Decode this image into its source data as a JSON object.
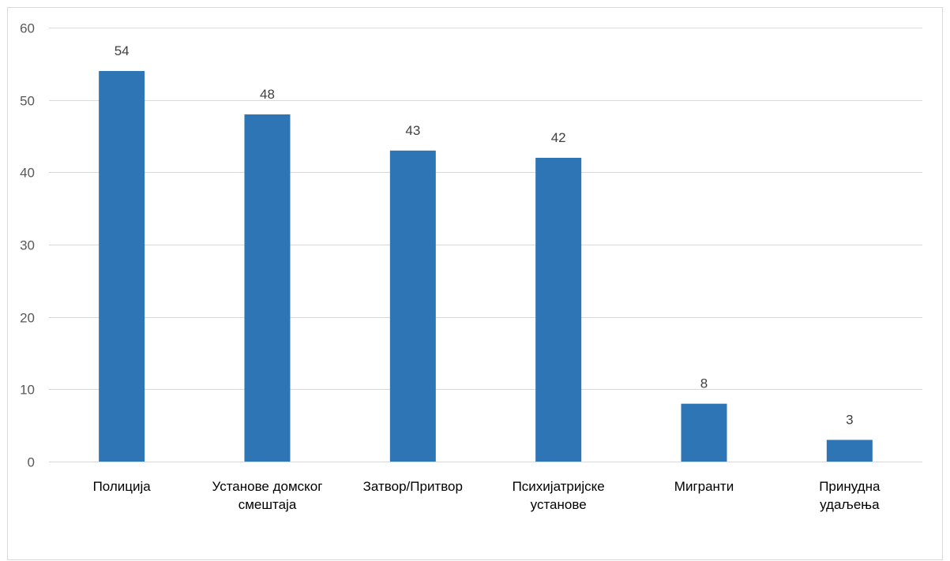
{
  "chart_data": {
    "type": "bar",
    "categories": [
      [
        "Полиција"
      ],
      [
        "Установе домског",
        "смештаја"
      ],
      [
        "Затвор/Притвор"
      ],
      [
        "Психијатријске",
        "установе"
      ],
      [
        "Мигранти"
      ],
      [
        "Принудна",
        "удаљења"
      ]
    ],
    "values": [
      54,
      48,
      43,
      42,
      8,
      3
    ],
    "ylim": [
      0,
      60
    ],
    "yticks": [
      0,
      10,
      20,
      30,
      40,
      50,
      60
    ],
    "grid": true,
    "legend": "none",
    "bar_color": "#2e75b6",
    "gridline_color": "#d9d9d9",
    "frame_color": "#d9d9d9"
  }
}
